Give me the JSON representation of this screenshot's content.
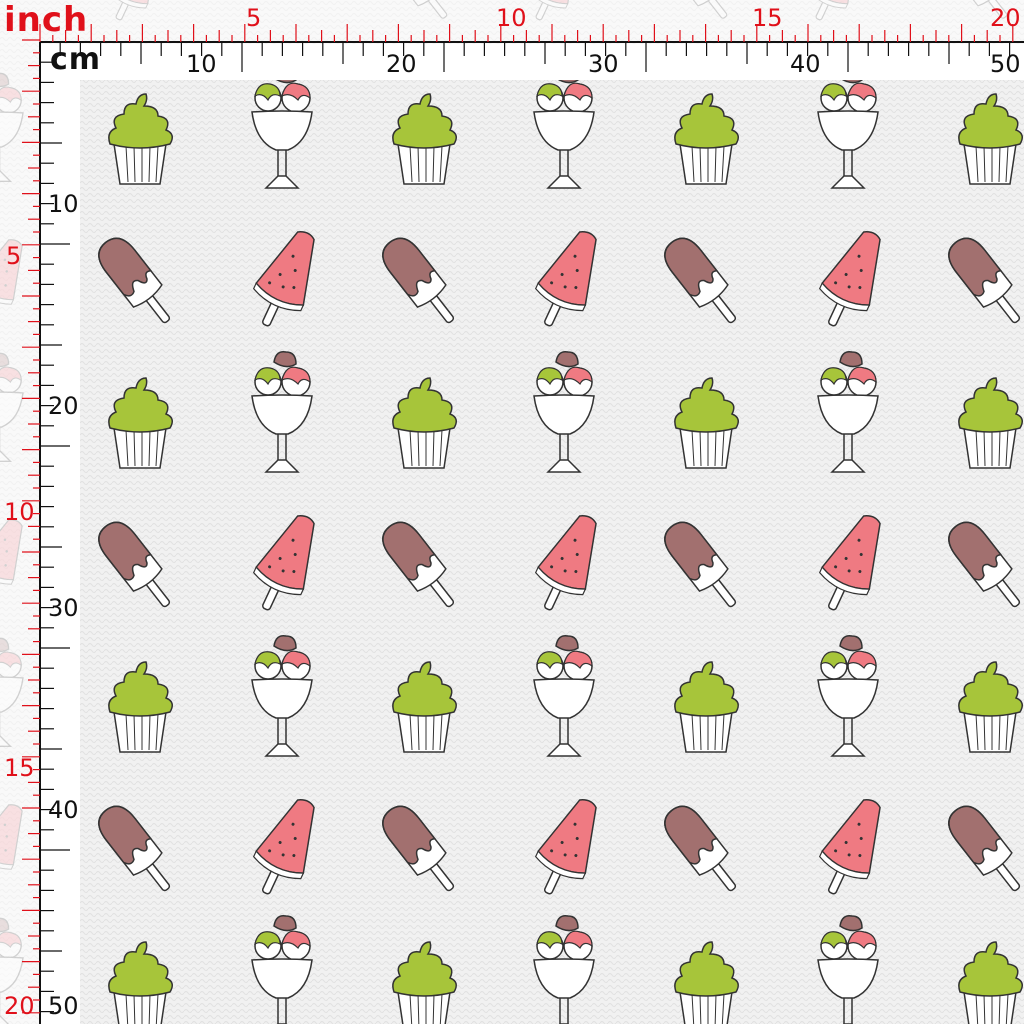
{
  "ruler": {
    "inch_title": "inch",
    "cm_title": "cm",
    "top_inch_labels": [
      "5",
      "10",
      "15",
      "20"
    ],
    "top_cm_labels": [
      "10",
      "20",
      "30",
      "40",
      "50"
    ],
    "left_inch_labels": [
      "5",
      "10",
      "15",
      "20"
    ],
    "left_cm_labels": [
      "10",
      "20",
      "30",
      "40",
      "50"
    ]
  },
  "fabric": {
    "background_color": "#f1f1f1",
    "motifs": [
      "cupcake-icon",
      "ice-cream-sundae-icon",
      "chocolate-popsicle-icon",
      "watermelon-popsicle-icon"
    ],
    "colors": {
      "green": "#a7c53a",
      "pink": "#ef7a82",
      "brown": "#a2706f",
      "outline": "#333333",
      "inch_red": "#e0101a"
    }
  }
}
